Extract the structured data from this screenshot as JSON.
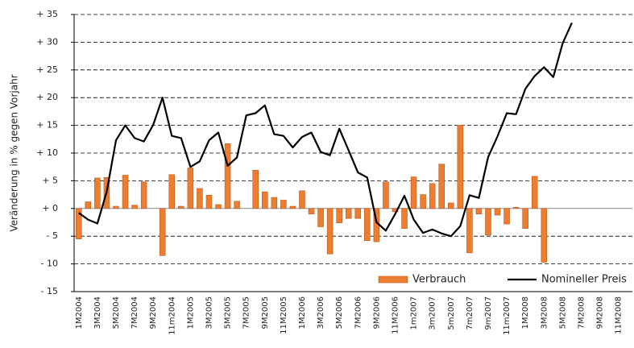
{
  "chart_data": {
    "type": "bar",
    "y_label": "Veränderung in % gegen Vorjahr",
    "categories": [
      "1M2004",
      null,
      "3M2004",
      null,
      "5M2004",
      null,
      "7M2004",
      null,
      "9M2004",
      null,
      "11m2004",
      null,
      "1M2005",
      null,
      "3M2005",
      null,
      "5M2005",
      null,
      "7M2005",
      null,
      "9M2005",
      null,
      "11M2005",
      null,
      "1M2006",
      null,
      "3M2006",
      null,
      "5M2006",
      null,
      "7M2006",
      null,
      "9M2006",
      null,
      "11M2006",
      null,
      "1m2007",
      null,
      "3m2007",
      null,
      "5m2007",
      null,
      "7m2007",
      null,
      "9m2007",
      null,
      "11m2007",
      null,
      "1M2008",
      null,
      "3M2008",
      null,
      "5M2008",
      null,
      "7M2008",
      null,
      "9M2008",
      null,
      "11M2008",
      null
    ],
    "series": [
      {
        "name": "Verbrauch",
        "type": "bar",
        "color": "#ed7d31",
        "values": [
          -5.5,
          1.2,
          5.5,
          5.6,
          0.4,
          6,
          0.6,
          4.8,
          null,
          -8.5,
          6.1,
          0.4,
          7.3,
          3.6,
          2.4,
          0.7,
          11.7,
          1.3,
          null,
          6.9,
          3,
          2,
          1.5,
          0.4,
          3.2,
          -1,
          -3.3,
          -8.2,
          -2.6,
          -1.8,
          -1.8,
          -5.8,
          -6,
          4.8,
          -0.6,
          -3.6,
          5.7,
          2.5,
          4.5,
          8,
          1,
          15,
          -8,
          -1,
          -4.8,
          -1.2,
          -2.8,
          0.2,
          -3.6,
          5.8,
          -9.7,
          null,
          null,
          null,
          null,
          null,
          null,
          null,
          null,
          null
        ]
      },
      {
        "name": "Nomineller Preis",
        "type": "line",
        "color": "#000000",
        "values": [
          -0.8,
          -2,
          -2.7,
          3,
          12.3,
          15,
          12.7,
          12.1,
          15.1,
          20,
          13.1,
          12.7,
          7.5,
          8.5,
          12.3,
          13.7,
          7.7,
          9.2,
          16.8,
          17.2,
          18.6,
          13.4,
          13.1,
          11,
          12.9,
          13.7,
          10.2,
          9.6,
          14.4,
          10.5,
          6.5,
          5.6,
          -2.5,
          -4,
          -1,
          2.3,
          -2,
          -4.4,
          -3.8,
          -4.5,
          -5,
          -3.2,
          2.4,
          1.9,
          9.3,
          13,
          17.2,
          17,
          21.6,
          23.9,
          25.5,
          23.7,
          29.8,
          33.5,
          null,
          null,
          null,
          null,
          null,
          null
        ]
      }
    ],
    "ylim": [
      -15,
      35
    ],
    "yticks": [
      {
        "value": 35,
        "label": "+ 35"
      },
      {
        "value": 30,
        "label": "+ 30"
      },
      {
        "value": 25,
        "label": "+ 25"
      },
      {
        "value": 20,
        "label": "+ 20"
      },
      {
        "value": 15,
        "label": "+ 15"
      },
      {
        "value": 10,
        "label": "+ 10"
      },
      {
        "value": 5,
        "label": "+ 5"
      },
      {
        "value": 0,
        "label": "+ 0"
      },
      {
        "value": -5,
        "label": "- 5"
      },
      {
        "value": -10,
        "label": "- 10"
      },
      {
        "value": -15,
        "label": "- 15"
      }
    ],
    "grid": true,
    "legend": "lower right"
  }
}
